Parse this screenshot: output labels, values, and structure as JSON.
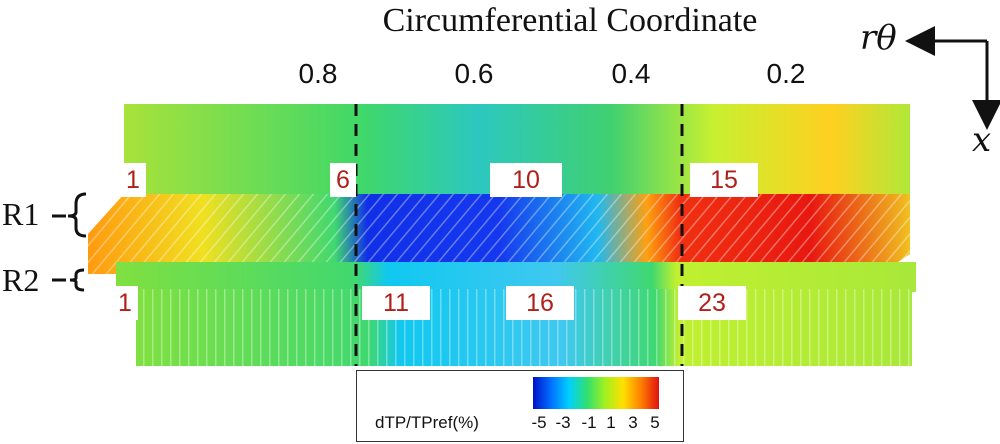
{
  "title": "Circumferential Coordinate",
  "ticks": [
    "0.8",
    "0.6",
    "0.4",
    "0.2"
  ],
  "row_labels": {
    "r1": "R1",
    "r2": "R2"
  },
  "axis_symbols": {
    "horizontal": "rθ",
    "vertical": "x"
  },
  "r1_passages": [
    "1",
    "6",
    "10",
    "15"
  ],
  "r2_passages": [
    "1",
    "11",
    "16",
    "23"
  ],
  "legend": {
    "label": "dTP/TPref(%)",
    "ticks": [
      "-5",
      "-3",
      "-1",
      "1",
      "3",
      "5"
    ],
    "colors": [
      "#0010c8",
      "#0070ff",
      "#00d0ff",
      "#30e070",
      "#a0f020",
      "#ffe000",
      "#ff8000",
      "#e01010"
    ]
  },
  "colors": {
    "number_text": "#b0201a",
    "field_low": "#1a3ff0",
    "field_mid": "#40d060",
    "field_high": "#f02010"
  }
}
